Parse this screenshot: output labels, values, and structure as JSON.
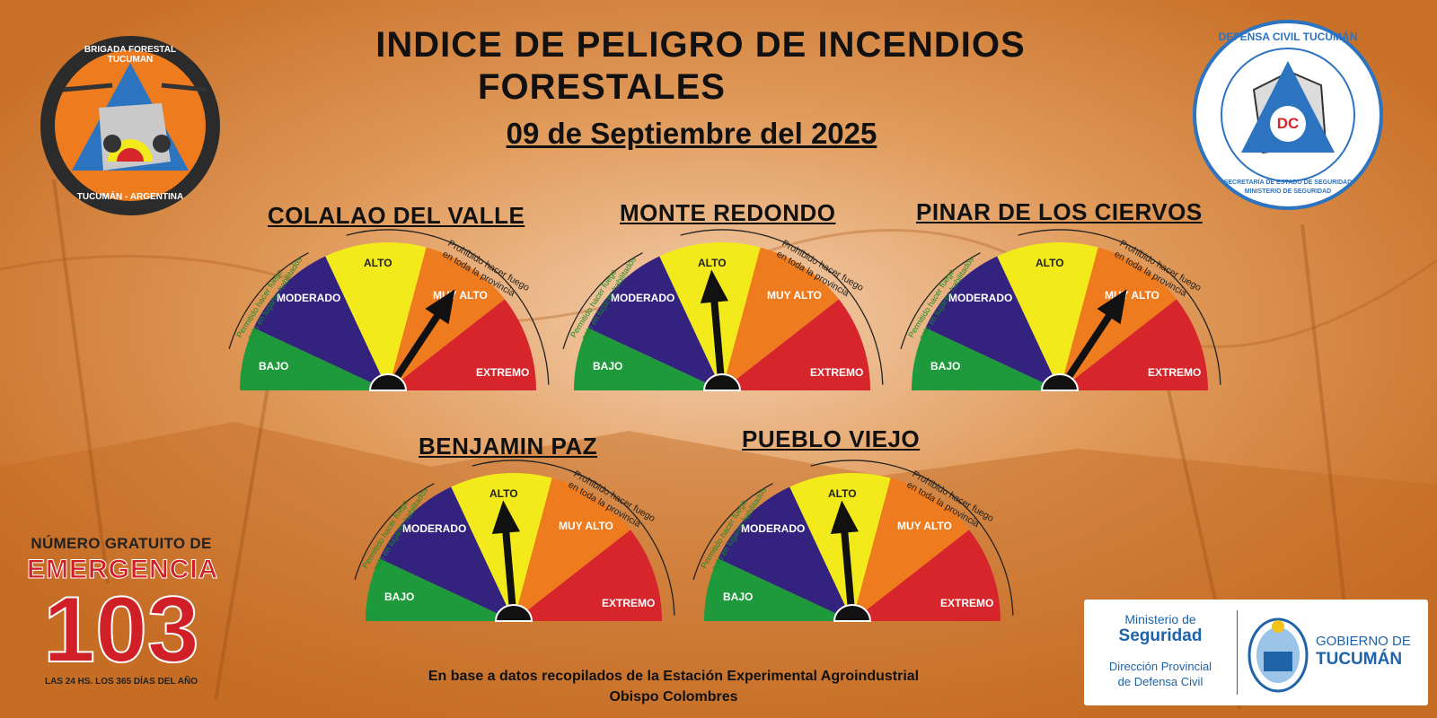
{
  "header": {
    "title_line1": "INDICE DE PELIGRO DE INCENDIOS",
    "title_line2": "FORESTALES",
    "date": "09 de Septiembre del 2025"
  },
  "gauge_labels": {
    "bajo": "BAJO",
    "moderado": "MODERADO",
    "alto": "ALTO",
    "muy_alto": "MUY ALTO",
    "extremo": "EXTREMO",
    "warn_line1": "Prohibido hacer fuego",
    "warn_line2": "en toda la provincia",
    "green_line1": "Permitido hacer fuego",
    "green_line2": "solo en lugares habilitados"
  },
  "colors": {
    "bajo": "#1e9a3c",
    "moderado": "#33227e",
    "alto": "#f3ea1b",
    "muy_alto": "#ee7b1e",
    "extremo": "#d6252b",
    "background": "#d9843a"
  },
  "gauges": [
    {
      "location": "COLALAO DEL VALLE",
      "level": "MUY ALTO"
    },
    {
      "location": "MONTE REDONDO",
      "level": "ALTO"
    },
    {
      "location": "PINAR DE LOS CIERVOS",
      "level": "MUY ALTO"
    },
    {
      "location": "BENJAMIN PAZ",
      "level": "ALTO"
    },
    {
      "location": "PUEBLO VIEJO",
      "level": "ALTO"
    }
  ],
  "logo_left": {
    "top_text": "BRIGADA FORESTAL TUCUMAN",
    "bottom_text": "TUCUMÁN - ARGENTINA",
    "icon": "brigade-emblem-icon"
  },
  "logo_right": {
    "top_text": "DEFENSA CIVIL TUCUMÁN",
    "bottom_line1": "SECRETARÍA DE ESTADO DE SEGURIDAD",
    "bottom_line2": "MINISTERIO DE SEGURIDAD",
    "badge": "DC",
    "icon": "civil-defense-triangle-icon"
  },
  "emergency": {
    "line1": "NÚMERO GRATUITO DE",
    "line2": "EMERGENCIA",
    "number": "103",
    "line4": "LAS 24 HS. LOS 365 DÍAS DEL AÑO"
  },
  "footer": {
    "line1": "En base a datos recopilados de la Estación Experimental Agroindustrial",
    "line2": "Obispo Colombres"
  },
  "government": {
    "ministry_prefix": "Ministerio de",
    "ministry_name": "Seguridad",
    "direction_line1": "Dirección Provincial",
    "direction_line2": "de Defensa Civil",
    "gov_prefix": "GOBIERNO DE",
    "gov_name": "TUCUMÁN",
    "icon": "tucuman-shield-icon"
  }
}
